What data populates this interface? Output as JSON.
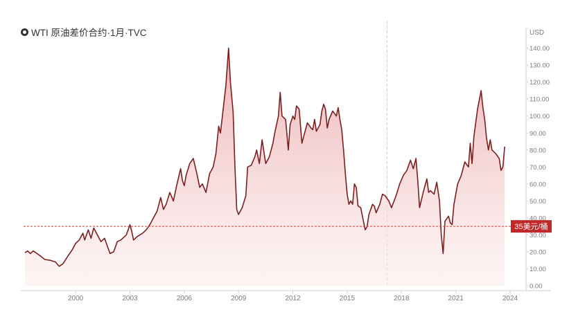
{
  "title": "WTI 原油差价合约·1月·TVC",
  "colors": {
    "line": "#7a1e1e",
    "fill_top": "#e9a4a6",
    "fill_bottom": "#fbeaea",
    "ref": "#d23a3a",
    "label_bg": "#c0282a",
    "axis_text": "#7a7a7a",
    "axis_line": "#cfcfcf"
  },
  "chart_data": {
    "type": "area",
    "title": "WTI 原油差价合约·1月·TVC",
    "xlabel": "",
    "ylabel": "USD",
    "ylim": [
      0,
      148
    ],
    "xlim": [
      1997.2,
      2024.0
    ],
    "y_ticks": [
      "0.00",
      "10.00",
      "20.00",
      "30.00",
      "40.00",
      "50.00",
      "60.00",
      "70.00",
      "80.00",
      "90.00",
      "100.00",
      "110.00",
      "120.00",
      "130.00",
      "140.00"
    ],
    "x_ticks": [
      "2000",
      "2003",
      "2006",
      "2009",
      "2012",
      "2015",
      "2018",
      "2021",
      "2024"
    ],
    "reference_line": {
      "value": 35,
      "label": "35美元/桶"
    },
    "vertical_marker_year": 2017.2,
    "grid": false,
    "series": [
      {
        "points": [
          [
            1997.2,
            19.5
          ],
          [
            1997.35,
            20.5
          ],
          [
            1997.5,
            19.0
          ],
          [
            1997.65,
            20.5
          ],
          [
            1997.8,
            19.5
          ],
          [
            1998.0,
            18.0
          ],
          [
            1998.3,
            15.5
          ],
          [
            1998.6,
            15.0
          ],
          [
            1998.9,
            14.0
          ],
          [
            1999.0,
            12.5
          ],
          [
            1999.1,
            11.5
          ],
          [
            1999.3,
            13.0
          ],
          [
            1999.6,
            18.0
          ],
          [
            1999.8,
            21.0
          ],
          [
            2000.0,
            25.0
          ],
          [
            2000.2,
            27.0
          ],
          [
            2000.4,
            31.0
          ],
          [
            2000.5,
            27.0
          ],
          [
            2000.7,
            33.0
          ],
          [
            2000.85,
            28.0
          ],
          [
            2001.0,
            34.0
          ],
          [
            2001.2,
            30.0
          ],
          [
            2001.4,
            26.0
          ],
          [
            2001.6,
            28.0
          ],
          [
            2001.8,
            22.0
          ],
          [
            2001.9,
            19.0
          ],
          [
            2002.1,
            20.0
          ],
          [
            2002.3,
            26.0
          ],
          [
            2002.5,
            27.0
          ],
          [
            2002.8,
            30.0
          ],
          [
            2003.0,
            36.0
          ],
          [
            2003.1,
            32.0
          ],
          [
            2003.2,
            27.0
          ],
          [
            2003.4,
            29.0
          ],
          [
            2003.7,
            31.0
          ],
          [
            2003.9,
            33.0
          ],
          [
            2004.1,
            36.0
          ],
          [
            2004.3,
            40.0
          ],
          [
            2004.5,
            44.0
          ],
          [
            2004.7,
            52.0
          ],
          [
            2004.85,
            45.0
          ],
          [
            2005.0,
            48.0
          ],
          [
            2005.2,
            55.0
          ],
          [
            2005.4,
            50.0
          ],
          [
            2005.6,
            60.0
          ],
          [
            2005.8,
            69.0
          ],
          [
            2005.9,
            62.0
          ],
          [
            2006.0,
            59.0
          ],
          [
            2006.1,
            65.0
          ],
          [
            2006.3,
            72.0
          ],
          [
            2006.5,
            75.0
          ],
          [
            2006.7,
            66.0
          ],
          [
            2006.85,
            58.0
          ],
          [
            2007.0,
            60.0
          ],
          [
            2007.2,
            55.0
          ],
          [
            2007.4,
            66.0
          ],
          [
            2007.6,
            70.0
          ],
          [
            2007.75,
            78.0
          ],
          [
            2007.9,
            94.0
          ],
          [
            2008.0,
            90.0
          ],
          [
            2008.15,
            104.0
          ],
          [
            2008.3,
            118.0
          ],
          [
            2008.45,
            140.0
          ],
          [
            2008.55,
            120.0
          ],
          [
            2008.7,
            102.0
          ],
          [
            2008.8,
            70.0
          ],
          [
            2008.9,
            45.0
          ],
          [
            2009.0,
            42.0
          ],
          [
            2009.2,
            46.0
          ],
          [
            2009.4,
            53.0
          ],
          [
            2009.5,
            70.0
          ],
          [
            2009.7,
            71.0
          ],
          [
            2009.9,
            76.0
          ],
          [
            2010.0,
            80.0
          ],
          [
            2010.15,
            72.0
          ],
          [
            2010.3,
            86.0
          ],
          [
            2010.5,
            72.0
          ],
          [
            2010.7,
            76.0
          ],
          [
            2010.9,
            84.0
          ],
          [
            2011.0,
            90.0
          ],
          [
            2011.2,
            100.0
          ],
          [
            2011.3,
            114.0
          ],
          [
            2011.4,
            100.0
          ],
          [
            2011.6,
            98.0
          ],
          [
            2011.75,
            80.0
          ],
          [
            2011.85,
            95.0
          ],
          [
            2012.0,
            100.0
          ],
          [
            2012.1,
            98.0
          ],
          [
            2012.2,
            106.0
          ],
          [
            2012.35,
            104.0
          ],
          [
            2012.5,
            84.0
          ],
          [
            2012.6,
            88.0
          ],
          [
            2012.8,
            96.0
          ],
          [
            2013.0,
            93.0
          ],
          [
            2013.1,
            92.0
          ],
          [
            2013.2,
            98.0
          ],
          [
            2013.3,
            91.0
          ],
          [
            2013.5,
            95.0
          ],
          [
            2013.6,
            103.0
          ],
          [
            2013.7,
            107.0
          ],
          [
            2013.8,
            104.0
          ],
          [
            2013.9,
            93.0
          ],
          [
            2014.0,
            98.0
          ],
          [
            2014.2,
            103.0
          ],
          [
            2014.4,
            100.0
          ],
          [
            2014.5,
            105.0
          ],
          [
            2014.6,
            98.0
          ],
          [
            2014.7,
            92.0
          ],
          [
            2014.8,
            80.0
          ],
          [
            2014.9,
            66.0
          ],
          [
            2015.0,
            54.0
          ],
          [
            2015.1,
            48.0
          ],
          [
            2015.2,
            50.0
          ],
          [
            2015.3,
            48.0
          ],
          [
            2015.4,
            60.0
          ],
          [
            2015.5,
            58.0
          ],
          [
            2015.6,
            47.0
          ],
          [
            2015.75,
            46.0
          ],
          [
            2015.9,
            38.0
          ],
          [
            2016.0,
            33.0
          ],
          [
            2016.1,
            35.0
          ],
          [
            2016.2,
            42.0
          ],
          [
            2016.4,
            48.0
          ],
          [
            2016.5,
            47.0
          ],
          [
            2016.6,
            43.0
          ],
          [
            2016.8,
            48.0
          ],
          [
            2016.95,
            54.0
          ],
          [
            2017.1,
            53.0
          ],
          [
            2017.3,
            50.0
          ],
          [
            2017.45,
            46.0
          ],
          [
            2017.7,
            53.0
          ],
          [
            2017.9,
            60.0
          ],
          [
            2018.1,
            65.0
          ],
          [
            2018.3,
            68.0
          ],
          [
            2018.5,
            74.0
          ],
          [
            2018.65,
            69.0
          ],
          [
            2018.8,
            75.0
          ],
          [
            2018.9,
            62.0
          ],
          [
            2019.0,
            46.0
          ],
          [
            2019.2,
            55.0
          ],
          [
            2019.4,
            63.0
          ],
          [
            2019.5,
            55.0
          ],
          [
            2019.6,
            56.0
          ],
          [
            2019.8,
            54.0
          ],
          [
            2019.95,
            61.0
          ],
          [
            2020.1,
            50.0
          ],
          [
            2020.2,
            30.0
          ],
          [
            2020.3,
            19.0
          ],
          [
            2020.4,
            38.0
          ],
          [
            2020.6,
            41.0
          ],
          [
            2020.7,
            37.0
          ],
          [
            2020.8,
            36.0
          ],
          [
            2020.9,
            48.0
          ],
          [
            2021.1,
            60.0
          ],
          [
            2021.3,
            65.0
          ],
          [
            2021.5,
            73.0
          ],
          [
            2021.7,
            70.0
          ],
          [
            2021.8,
            84.0
          ],
          [
            2021.9,
            72.0
          ],
          [
            2022.0,
            88.0
          ],
          [
            2022.2,
            104.0
          ],
          [
            2022.4,
            115.0
          ],
          [
            2022.5,
            105.0
          ],
          [
            2022.6,
            98.0
          ],
          [
            2022.7,
            87.0
          ],
          [
            2022.8,
            80.0
          ],
          [
            2022.9,
            86.0
          ],
          [
            2023.0,
            80.0
          ],
          [
            2023.2,
            78.0
          ],
          [
            2023.4,
            75.0
          ],
          [
            2023.5,
            68.0
          ],
          [
            2023.6,
            70.0
          ],
          [
            2023.7,
            82.0
          ]
        ]
      }
    ]
  }
}
